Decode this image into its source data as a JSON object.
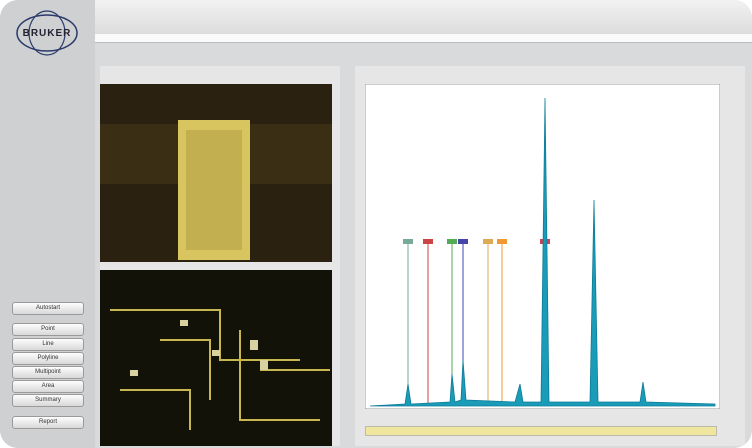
{
  "sidebar": {
    "logo": "BRUKER",
    "buttons": [
      "Autostart",
      "Point",
      "Line",
      "Polyline",
      "Multipoint",
      "Area",
      "Summary",
      "Report"
    ]
  }
}
